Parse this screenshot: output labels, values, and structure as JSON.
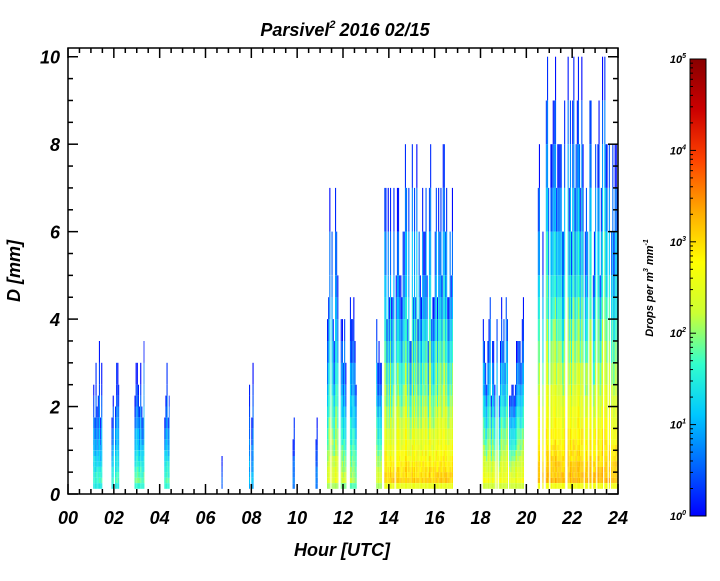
{
  "chart_data": {
    "type": "heatmap",
    "title": "Parsivel",
    "title_superscript": "2",
    "title_date": "2016 02/15",
    "xlabel": "Hour [UTC]",
    "ylabel": "D [mm]",
    "xlim": [
      0,
      24
    ],
    "ylim": [
      0,
      10.2
    ],
    "x_ticks": [
      0,
      2,
      4,
      6,
      8,
      10,
      12,
      14,
      16,
      18,
      20,
      22,
      24
    ],
    "x_tick_labels": [
      "00",
      "02",
      "04",
      "06",
      "08",
      "10",
      "12",
      "14",
      "16",
      "18",
      "20",
      "22",
      "24"
    ],
    "y_ticks": [
      0,
      2,
      4,
      6,
      8,
      10
    ],
    "y_tick_labels": [
      "0",
      "2",
      "4",
      "6",
      "8",
      "10"
    ],
    "colorbar": {
      "label": "Drops per m",
      "label_sup1": "3",
      "label_mid": " mm",
      "label_sup2": "-1",
      "scale": "log",
      "range": [
        1,
        100000
      ],
      "tick_exponents": [
        0,
        1,
        2,
        3,
        4,
        5
      ],
      "tick_base": "10",
      "colormap": [
        "#0000ff",
        "#0066ff",
        "#00c8ff",
        "#33ffcc",
        "#ccff33",
        "#ffff00",
        "#ffaa00",
        "#ff4400",
        "#cc0000",
        "#880000"
      ]
    },
    "rain_events": [
      {
        "start": 1.1,
        "end": 1.5,
        "dmax": 3.2,
        "peak": 1.8
      },
      {
        "start": 1.9,
        "end": 2.2,
        "dmax": 3.2,
        "peak": 1.8
      },
      {
        "start": 2.9,
        "end": 3.3,
        "dmax": 3.7,
        "peak": 2.0
      },
      {
        "start": 4.2,
        "end": 4.4,
        "dmax": 3.2,
        "peak": 2.0
      },
      {
        "start": 6.7,
        "end": 6.8,
        "dmax": 0.9,
        "peak": 0.6
      },
      {
        "start": 7.9,
        "end": 8.1,
        "dmax": 3.5,
        "peak": 1.2
      },
      {
        "start": 9.8,
        "end": 9.9,
        "dmax": 1.8,
        "peak": 0.8
      },
      {
        "start": 10.8,
        "end": 10.9,
        "dmax": 2.1,
        "peak": 0.8
      },
      {
        "start": 11.3,
        "end": 11.8,
        "dmax": 6.5,
        "peak": 2.6
      },
      {
        "start": 11.9,
        "end": 12.2,
        "dmax": 5.2,
        "peak": 2.4
      },
      {
        "start": 12.3,
        "end": 12.6,
        "dmax": 4.6,
        "peak": 2.2
      },
      {
        "start": 13.4,
        "end": 13.7,
        "dmax": 4.2,
        "peak": 2.6
      },
      {
        "start": 13.8,
        "end": 16.8,
        "dmax": 7.5,
        "peak": 3.2
      },
      {
        "start": 18.1,
        "end": 19.9,
        "dmax": 4.6,
        "peak": 2.8
      },
      {
        "start": 20.5,
        "end": 24.0,
        "dmax": 10.0,
        "peak": 3.3
      }
    ]
  }
}
